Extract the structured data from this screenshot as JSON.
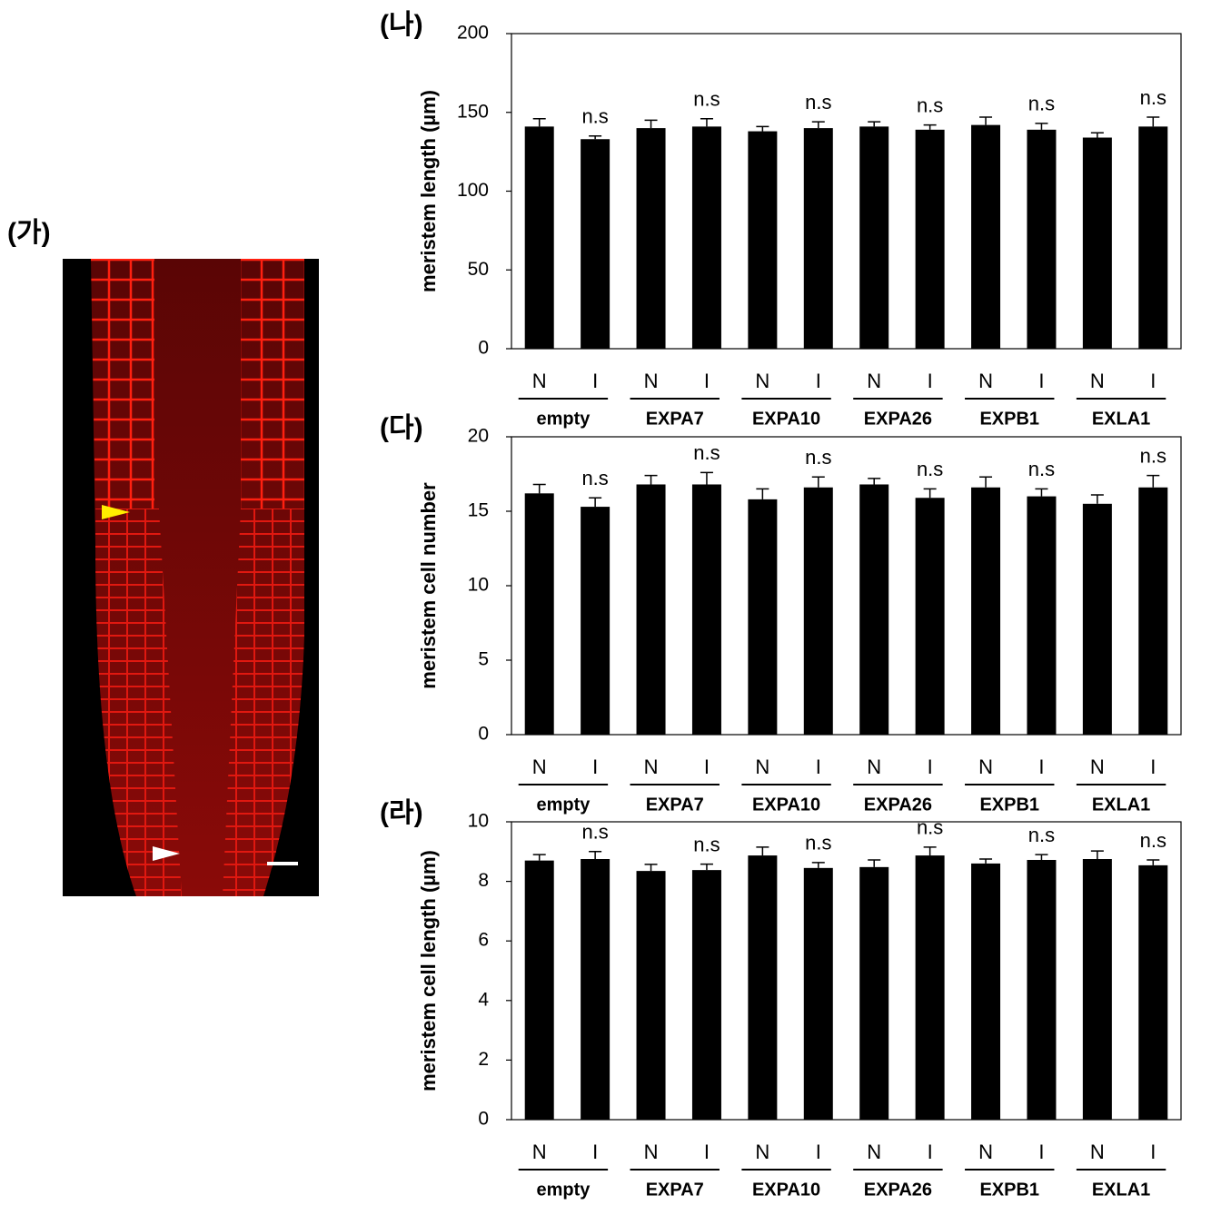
{
  "image_panel": {
    "label": "(가)"
  },
  "chart_data": [
    {
      "type": "bar",
      "panel": "(나)",
      "ylabel": "meristem length (µm)",
      "color": "#000000",
      "categories": [
        "N",
        "I",
        "N",
        "I",
        "N",
        "I",
        "N",
        "I",
        "N",
        "I",
        "N",
        "I"
      ],
      "groups": [
        "empty",
        "EXPA7",
        "EXPA10",
        "EXPA26",
        "EXPB1",
        "EXLA1"
      ],
      "values": [
        141,
        133,
        140,
        141,
        138,
        140,
        141,
        139,
        142,
        139,
        134,
        141
      ],
      "errors": [
        5,
        2,
        5,
        5,
        3,
        4,
        3,
        3,
        5,
        4,
        3,
        6
      ],
      "annotations": [
        null,
        "n.s",
        null,
        "n.s",
        null,
        "n.s",
        null,
        "n.s",
        null,
        "n.s",
        null,
        "n.s"
      ],
      "ylim": [
        0,
        200
      ],
      "yticks": [
        0,
        50,
        100,
        150,
        200
      ]
    },
    {
      "type": "bar",
      "panel": "(다)",
      "ylabel": "meristem cell number",
      "color": "#000000",
      "categories": [
        "N",
        "I",
        "N",
        "I",
        "N",
        "I",
        "N",
        "I",
        "N",
        "I",
        "N",
        "I"
      ],
      "groups": [
        "empty",
        "EXPA7",
        "EXPA10",
        "EXPA26",
        "EXPB1",
        "EXLA1"
      ],
      "values": [
        16.2,
        15.3,
        16.8,
        16.8,
        15.8,
        16.6,
        16.8,
        15.9,
        16.6,
        16.0,
        15.5,
        16.6
      ],
      "errors": [
        0.6,
        0.6,
        0.6,
        0.8,
        0.7,
        0.7,
        0.4,
        0.6,
        0.7,
        0.5,
        0.6,
        0.8
      ],
      "annotations": [
        null,
        "n.s",
        null,
        "n.s",
        null,
        "n.s",
        null,
        "n.s",
        null,
        "n.s",
        null,
        "n.s"
      ],
      "ylim": [
        0,
        20
      ],
      "yticks": [
        0,
        5,
        10,
        15,
        20
      ]
    },
    {
      "type": "bar",
      "panel": "(라)",
      "ylabel": "meristem cell length (µm)",
      "color": "#000000",
      "categories": [
        "N",
        "I",
        "N",
        "I",
        "N",
        "I",
        "N",
        "I",
        "N",
        "I",
        "N",
        "I"
      ],
      "groups": [
        "empty",
        "EXPA7",
        "EXPA10",
        "EXPA26",
        "EXPB1",
        "EXLA1"
      ],
      "values": [
        8.7,
        8.75,
        8.35,
        8.38,
        8.87,
        8.45,
        8.48,
        8.87,
        8.6,
        8.72,
        8.75,
        8.54
      ],
      "errors": [
        0.2,
        0.25,
        0.22,
        0.2,
        0.28,
        0.18,
        0.24,
        0.28,
        0.15,
        0.18,
        0.27,
        0.18
      ],
      "annotations": [
        null,
        "n.s",
        null,
        "n.s",
        null,
        "n.s",
        null,
        "n.s",
        null,
        "n.s",
        null,
        "n.s"
      ],
      "ylim": [
        0,
        10
      ],
      "yticks": [
        0,
        2,
        4,
        6,
        8,
        10
      ]
    }
  ]
}
